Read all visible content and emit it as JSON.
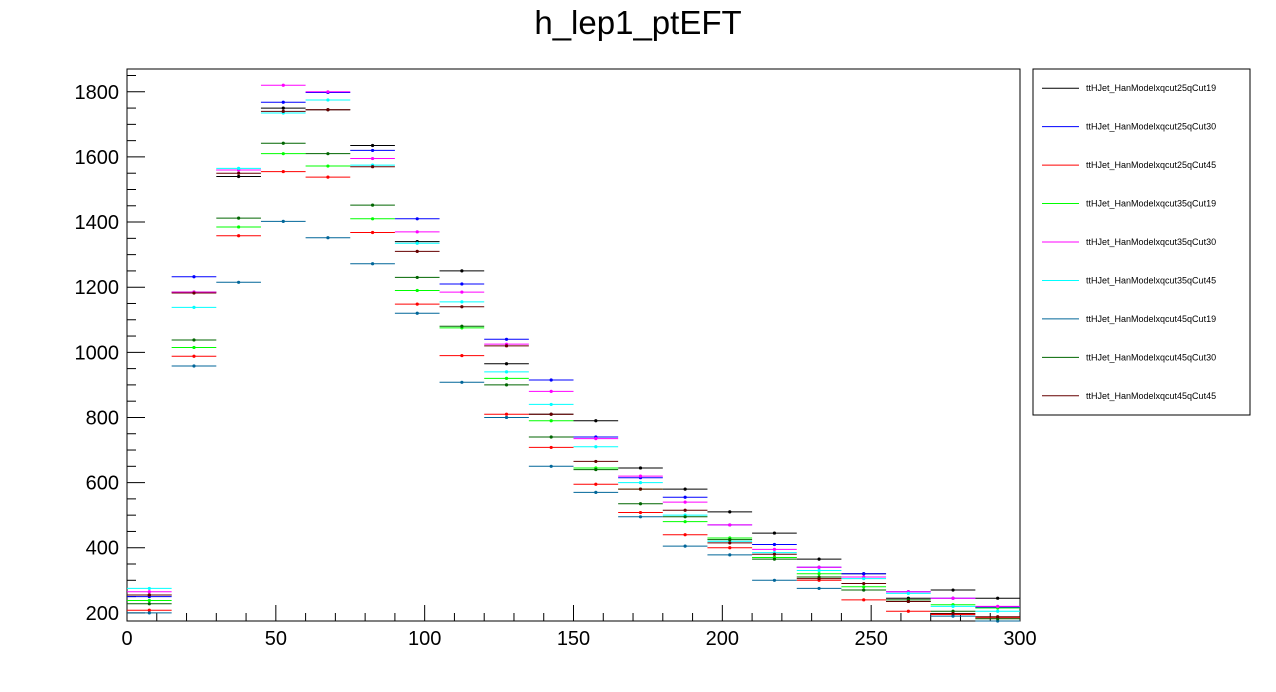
{
  "chart_data": {
    "type": "line",
    "title": "h_lep1_ptEFT",
    "xlabel": "",
    "ylabel": "",
    "xlim": [
      0,
      300
    ],
    "ylim": [
      175,
      1870
    ],
    "x_ticks": [
      0,
      50,
      100,
      150,
      200,
      250,
      300
    ],
    "y_ticks": [
      200,
      400,
      600,
      800,
      1000,
      1200,
      1400,
      1600,
      1800
    ],
    "bin_edges": [
      0,
      15,
      30,
      45,
      60,
      75,
      90,
      105,
      120,
      135,
      150,
      165,
      180,
      195,
      210,
      225,
      240,
      255,
      270,
      285,
      300
    ],
    "legend_position": "right",
    "series": [
      {
        "name": "ttHJet_HanModelxqcut25qCut19",
        "color": "#000000",
        "values": [
          255,
          1185,
          1540,
          1750,
          1745,
          1635,
          1340,
          1250,
          965,
          810,
          790,
          645,
          580,
          510,
          445,
          365,
          320,
          245,
          270,
          245
        ]
      },
      {
        "name": "ttHJet_HanModelxqcut25qCut30",
        "color": "#0000ff",
        "values": [
          250,
          1232,
          1560,
          1768,
          1798,
          1620,
          1410,
          1210,
          1040,
          915,
          740,
          615,
          555,
          470,
          410,
          340,
          320,
          265,
          245,
          218
        ]
      },
      {
        "name": "ttHJet_HanModelxqcut25qCut45",
        "color": "#ff0000",
        "values": [
          208,
          988,
          1358,
          1555,
          1538,
          1368,
          1148,
          990,
          810,
          708,
          595,
          508,
          440,
          400,
          370,
          300,
          240,
          205,
          195,
          185
        ]
      },
      {
        "name": "ttHJet_HanModelxqcut35qCut19",
        "color": "#00ff00",
        "values": [
          238,
          1015,
          1385,
          1610,
          1572,
          1410,
          1190,
          1075,
          920,
          790,
          645,
          580,
          480,
          430,
          370,
          320,
          280,
          235,
          225,
          215
        ]
      },
      {
        "name": "ttHJet_HanModelxqcut35qCut30",
        "color": "#ff00ff",
        "values": [
          265,
          1185,
          1560,
          1820,
          1800,
          1595,
          1370,
          1185,
          1025,
          880,
          735,
          620,
          540,
          470,
          395,
          340,
          310,
          265,
          245,
          220
        ]
      },
      {
        "name": "ttHJet_HanModelxqcut35qCut45",
        "color": "#00ffff",
        "values": [
          275,
          1138,
          1565,
          1735,
          1775,
          1575,
          1335,
          1155,
          940,
          840,
          710,
          600,
          500,
          420,
          385,
          330,
          305,
          260,
          220,
          205
        ]
      },
      {
        "name": "ttHJet_HanModelxqcut45qCut19",
        "color": "#006699",
        "values": [
          200,
          958,
          1215,
          1402,
          1352,
          1272,
          1120,
          908,
          800,
          650,
          570,
          495,
          405,
          378,
          300,
          275,
          270,
          235,
          190,
          175
        ]
      },
      {
        "name": "ttHJet_HanModelxqcut45qCut30",
        "color": "#006600",
        "values": [
          228,
          1038,
          1412,
          1642,
          1610,
          1452,
          1230,
          1080,
          900,
          740,
          640,
          535,
          495,
          425,
          365,
          310,
          270,
          240,
          205,
          182
        ]
      },
      {
        "name": "ttHJet_HanModelxqcut45qCut45",
        "color": "#660000",
        "values": [
          255,
          1182,
          1550,
          1740,
          1745,
          1570,
          1310,
          1140,
          1020,
          810,
          665,
          580,
          515,
          415,
          380,
          305,
          290,
          235,
          198,
          188
        ]
      }
    ]
  }
}
